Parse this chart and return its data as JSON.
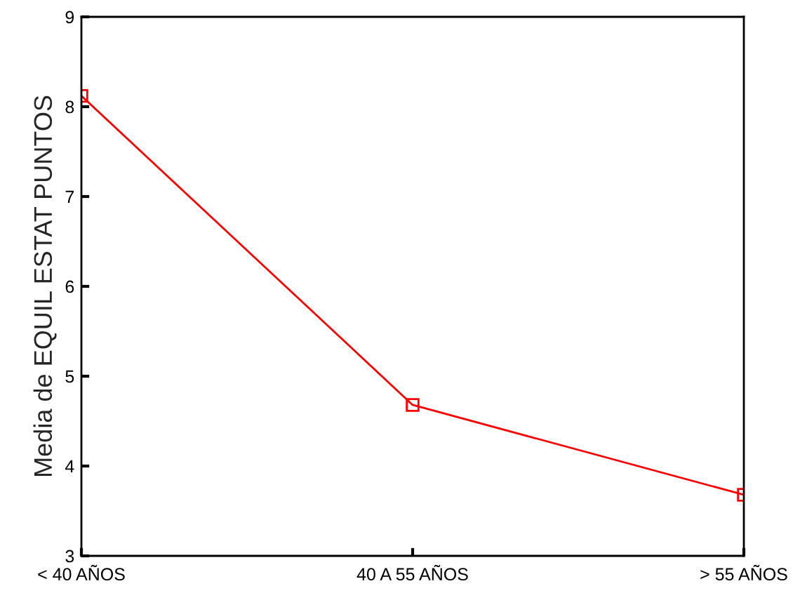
{
  "chart_data": {
    "type": "line",
    "ylabel": "Media de EQUIL ESTAT PUNTOS",
    "categories": [
      "< 40 AÑOS",
      "40 A 55 AÑOS",
      "> 55 AÑOS"
    ],
    "series": [
      {
        "color": "#ff0000",
        "values": [
          8.12,
          4.68,
          3.68
        ]
      }
    ],
    "ylim": [
      3,
      9
    ],
    "yticks": [
      3,
      4,
      5,
      6,
      7,
      8,
      9
    ],
    "marker": "square",
    "line_style": "solid",
    "grid": false,
    "legend": false
  }
}
